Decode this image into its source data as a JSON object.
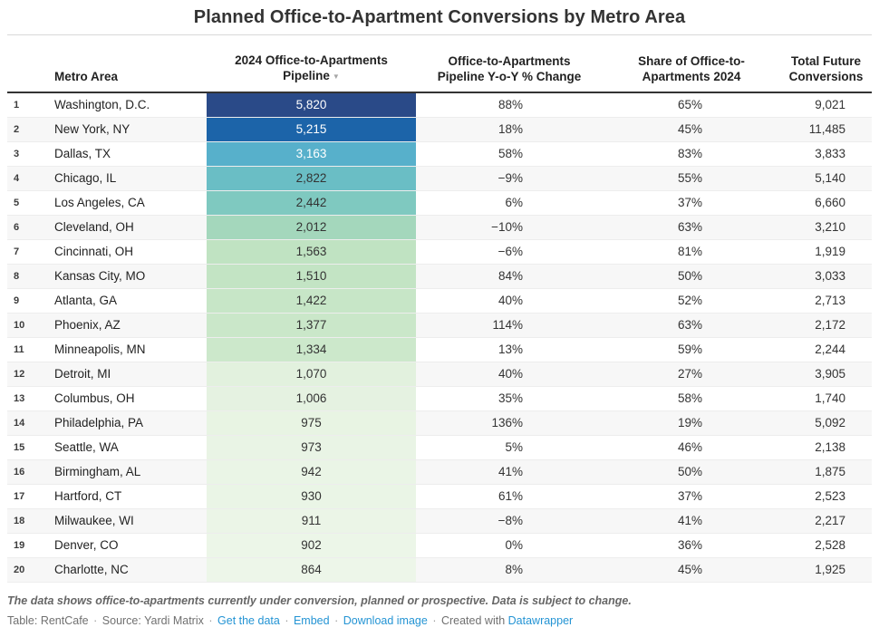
{
  "title": "Planned Office-to-Apartment Conversions by Metro Area",
  "table": {
    "headers": {
      "metro": "Metro Area",
      "pipeline": [
        "2024 Office-to-Apartments",
        "Pipeline"
      ],
      "yoy": [
        "Office-to-Apartments",
        "Pipeline Y-o-Y % Change"
      ],
      "share": [
        "Share of Office-to-",
        "Apartments 2024"
      ],
      "total": [
        "Total Future",
        "Conversions"
      ]
    },
    "sort_icon": "▼",
    "rows": [
      {
        "rank": "1",
        "metro": "Washington, D.C.",
        "pipeline": "5,820",
        "yoy": "88%",
        "share": "65%",
        "total": "9,021",
        "bar_color": "#2a4a88",
        "bar_text": "#ffffff"
      },
      {
        "rank": "2",
        "metro": "New York, NY",
        "pipeline": "5,215",
        "yoy": "18%",
        "share": "45%",
        "total": "11,485",
        "bar_color": "#1c64a9",
        "bar_text": "#ffffff"
      },
      {
        "rank": "3",
        "metro": "Dallas, TX",
        "pipeline": "3,163",
        "yoy": "58%",
        "share": "83%",
        "total": "3,833",
        "bar_color": "#57b0cb",
        "bar_text": "#ffffff"
      },
      {
        "rank": "4",
        "metro": "Chicago, IL",
        "pipeline": "2,822",
        "yoy": "−9%",
        "share": "55%",
        "total": "5,140",
        "bar_color": "#6abec5",
        "bar_text": "#333333"
      },
      {
        "rank": "5",
        "metro": "Los Angeles, CA",
        "pipeline": "2,442",
        "yoy": "6%",
        "share": "37%",
        "total": "6,660",
        "bar_color": "#7fc9c0",
        "bar_text": "#333333"
      },
      {
        "rank": "6",
        "metro": "Cleveland, OH",
        "pipeline": "2,012",
        "yoy": "−10%",
        "share": "63%",
        "total": "3,210",
        "bar_color": "#a4d7bc",
        "bar_text": "#333333"
      },
      {
        "rank": "7",
        "metro": "Cincinnati, OH",
        "pipeline": "1,563",
        "yoy": "−6%",
        "share": "81%",
        "total": "1,919",
        "bar_color": "#c0e3c2",
        "bar_text": "#333333"
      },
      {
        "rank": "8",
        "metro": "Kansas City, MO",
        "pipeline": "1,510",
        "yoy": "84%",
        "share": "50%",
        "total": "3,033",
        "bar_color": "#c3e4c4",
        "bar_text": "#333333"
      },
      {
        "rank": "9",
        "metro": "Atlanta, GA",
        "pipeline": "1,422",
        "yoy": "40%",
        "share": "52%",
        "total": "2,713",
        "bar_color": "#c7e6c7",
        "bar_text": "#333333"
      },
      {
        "rank": "10",
        "metro": "Phoenix, AZ",
        "pipeline": "1,377",
        "yoy": "114%",
        "share": "63%",
        "total": "2,172",
        "bar_color": "#cae7c9",
        "bar_text": "#333333"
      },
      {
        "rank": "11",
        "metro": "Minneapolis, MN",
        "pipeline": "1,334",
        "yoy": "13%",
        "share": "59%",
        "total": "2,244",
        "bar_color": "#cce8cb",
        "bar_text": "#333333"
      },
      {
        "rank": "12",
        "metro": "Detroit, MI",
        "pipeline": "1,070",
        "yoy": "40%",
        "share": "27%",
        "total": "3,905",
        "bar_color": "#e2f1de",
        "bar_text": "#333333"
      },
      {
        "rank": "13",
        "metro": "Columbus, OH",
        "pipeline": "1,006",
        "yoy": "35%",
        "share": "58%",
        "total": "1,740",
        "bar_color": "#e5f2e1",
        "bar_text": "#333333"
      },
      {
        "rank": "14",
        "metro": "Philadelphia, PA",
        "pipeline": "975",
        "yoy": "136%",
        "share": "19%",
        "total": "5,092",
        "bar_color": "#e8f4e3",
        "bar_text": "#333333"
      },
      {
        "rank": "15",
        "metro": "Seattle, WA",
        "pipeline": "973",
        "yoy": "5%",
        "share": "46%",
        "total": "2,138",
        "bar_color": "#e9f4e5",
        "bar_text": "#333333"
      },
      {
        "rank": "16",
        "metro": "Birmingham, AL",
        "pipeline": "942",
        "yoy": "41%",
        "share": "50%",
        "total": "1,875",
        "bar_color": "#eaf5e6",
        "bar_text": "#333333"
      },
      {
        "rank": "17",
        "metro": "Hartford, CT",
        "pipeline": "930",
        "yoy": "61%",
        "share": "37%",
        "total": "2,523",
        "bar_color": "#eaf5e6",
        "bar_text": "#333333"
      },
      {
        "rank": "18",
        "metro": "Milwaukee, WI",
        "pipeline": "911",
        "yoy": "−8%",
        "share": "41%",
        "total": "2,217",
        "bar_color": "#ebf5e7",
        "bar_text": "#333333"
      },
      {
        "rank": "19",
        "metro": "Denver, CO",
        "pipeline": "902",
        "yoy": "0%",
        "share": "36%",
        "total": "2,528",
        "bar_color": "#ecf6e8",
        "bar_text": "#333333"
      },
      {
        "rank": "20",
        "metro": "Charlotte, NC",
        "pipeline": "864",
        "yoy": "8%",
        "share": "45%",
        "total": "1,925",
        "bar_color": "#edf6e9",
        "bar_text": "#333333"
      }
    ]
  },
  "footer": {
    "note": "The data shows office-to-apartments currently under conversion, planned or prospective. Data is subject to change.",
    "credit_table": "Table: RentCafe",
    "credit_source": "Source: Yardi Matrix",
    "link_get_data": "Get the data",
    "link_embed": "Embed",
    "link_download": "Download image",
    "created_with": "Created with",
    "link_creator": "Datawrapper",
    "separator": "·"
  },
  "colors": {
    "link_blue": "#2494d4",
    "header_border": "#333333",
    "stripe": "#f7f7f7",
    "title_text": "#333333",
    "body_text": "#333333",
    "muted_text": "#707070"
  },
  "chart_data": {
    "type": "table",
    "title": "Planned Office-to-Apartment Conversions by Metro Area",
    "columns": [
      "Metro Area",
      "2024 Office-to-Apartments Pipeline",
      "Office-to-Apartments Pipeline Y-o-Y % Change",
      "Share of Office-to-Apartments 2024",
      "Total Future Conversions"
    ],
    "sorted_by": "2024 Office-to-Apartments Pipeline descending",
    "heatmap_column": "2024 Office-to-Apartments Pipeline",
    "rows": [
      [
        "Washington, D.C.",
        5820,
        88,
        65,
        9021
      ],
      [
        "New York, NY",
        5215,
        18,
        45,
        11485
      ],
      [
        "Dallas, TX",
        3163,
        58,
        83,
        3833
      ],
      [
        "Chicago, IL",
        2822,
        -9,
        55,
        5140
      ],
      [
        "Los Angeles, CA",
        2442,
        6,
        37,
        6660
      ],
      [
        "Cleveland, OH",
        2012,
        -10,
        63,
        3210
      ],
      [
        "Cincinnati, OH",
        1563,
        -6,
        81,
        1919
      ],
      [
        "Kansas City, MO",
        1510,
        84,
        50,
        3033
      ],
      [
        "Atlanta, GA",
        1422,
        40,
        52,
        2713
      ],
      [
        "Phoenix, AZ",
        1377,
        114,
        63,
        2172
      ],
      [
        "Minneapolis, MN",
        1334,
        13,
        59,
        2244
      ],
      [
        "Detroit, MI",
        1070,
        40,
        27,
        3905
      ],
      [
        "Columbus, OH",
        1006,
        35,
        58,
        1740
      ],
      [
        "Philadelphia, PA",
        975,
        136,
        19,
        5092
      ],
      [
        "Seattle, WA",
        973,
        5,
        46,
        2138
      ],
      [
        "Birmingham, AL",
        942,
        41,
        50,
        1875
      ],
      [
        "Hartford, CT",
        930,
        61,
        37,
        2523
      ],
      [
        "Milwaukee, WI",
        911,
        -8,
        41,
        2217
      ],
      [
        "Denver, CO",
        902,
        0,
        36,
        2528
      ],
      [
        "Charlotte, NC",
        864,
        8,
        45,
        1925
      ]
    ]
  }
}
